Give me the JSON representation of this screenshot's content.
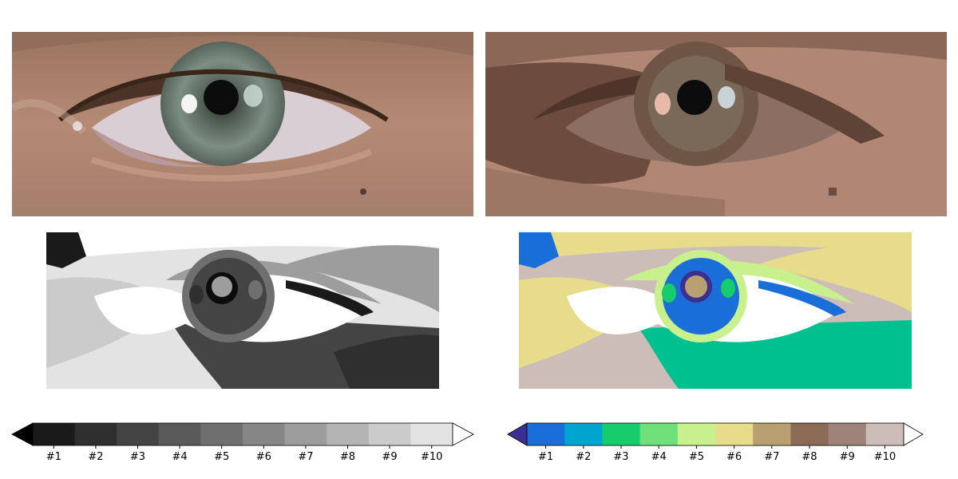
{
  "panels": {
    "original": "photo of a human eye (original colors)",
    "quantized": "eye quantized to a 10-level brown palette",
    "gray": "eye quantized, grayscale colormap",
    "terrain": "eye quantized, terrain colormap"
  },
  "colorbars": [
    {
      "name": "gray",
      "labels": [
        "#1",
        "#2",
        "#3",
        "#4",
        "#5",
        "#6",
        "#7",
        "#8",
        "#9",
        "#10"
      ],
      "colors": [
        "#1a1a1a",
        "#2f2f2f",
        "#444444",
        "#5a5a5a",
        "#6f6f6f",
        "#868686",
        "#9d9d9d",
        "#b4b4b4",
        "#cbcbcb",
        "#e3e3e3"
      ],
      "under": "#000000",
      "over": "#ffffff"
    },
    {
      "name": "terrain",
      "labels": [
        "#1",
        "#2",
        "#3",
        "#4",
        "#5",
        "#6",
        "#7",
        "#8",
        "#9",
        "#10"
      ],
      "colors": [
        "#1a6ed8",
        "#00a4d0",
        "#16cc6c",
        "#6fe07a",
        "#c8f08c",
        "#e6dc8a",
        "#b8a070",
        "#8b6a56",
        "#a08378",
        "#cdbdb8"
      ],
      "under": "#3b3092",
      "over": "#ffffff"
    }
  ]
}
